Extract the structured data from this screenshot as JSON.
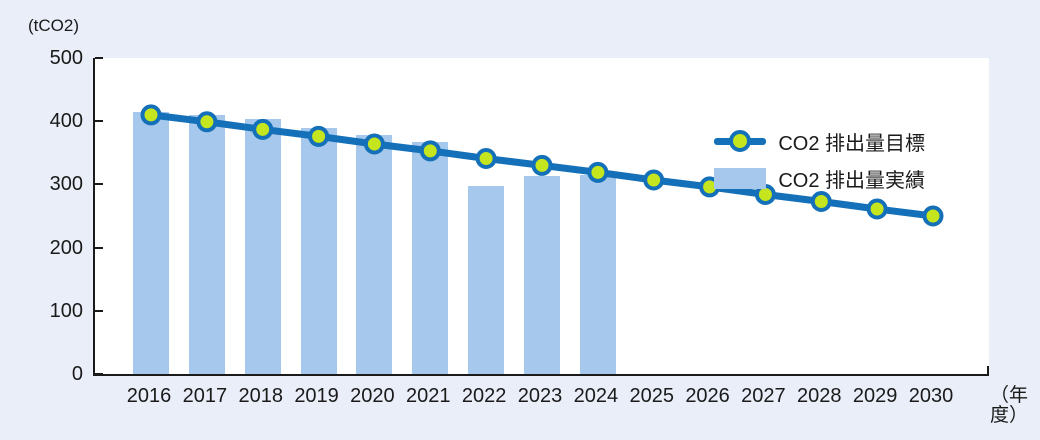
{
  "chart_data": {
    "type": "bar",
    "subtype": "bar-and-line-combo",
    "title": "",
    "unit_label": "(tCO2)",
    "x_axis_unit_label": "（年度）",
    "categories": [
      "2016",
      "2017",
      "2018",
      "2019",
      "2020",
      "2021",
      "2022",
      "2023",
      "2024",
      "2025",
      "2026",
      "2027",
      "2028",
      "2029",
      "2030"
    ],
    "series": [
      {
        "name": "CO2 排出量目標",
        "type": "line",
        "values": [
          410,
          399,
          387,
          376,
          364,
          353,
          341,
          330,
          319,
          307,
          296,
          284,
          273,
          261,
          250
        ]
      },
      {
        "name": "CO2 排出量実績",
        "type": "bar",
        "values": [
          415,
          410,
          403,
          390,
          378,
          367,
          298,
          313,
          315,
          null,
          null,
          null,
          null,
          null,
          null
        ]
      }
    ],
    "ylim": [
      0,
      500
    ],
    "yticks": [
      0,
      100,
      200,
      300,
      400,
      500
    ],
    "grid": false,
    "legend_position": "top-right"
  },
  "colors": {
    "background": "#e9eef8",
    "plot_background": "#ffffff",
    "axis": "#1a1a1a",
    "line": "#1470b8",
    "marker_fill": "#c5e51e",
    "marker_stroke": "#1470b8",
    "bar": "#a5c8ec",
    "text": "#1a1a1a"
  }
}
